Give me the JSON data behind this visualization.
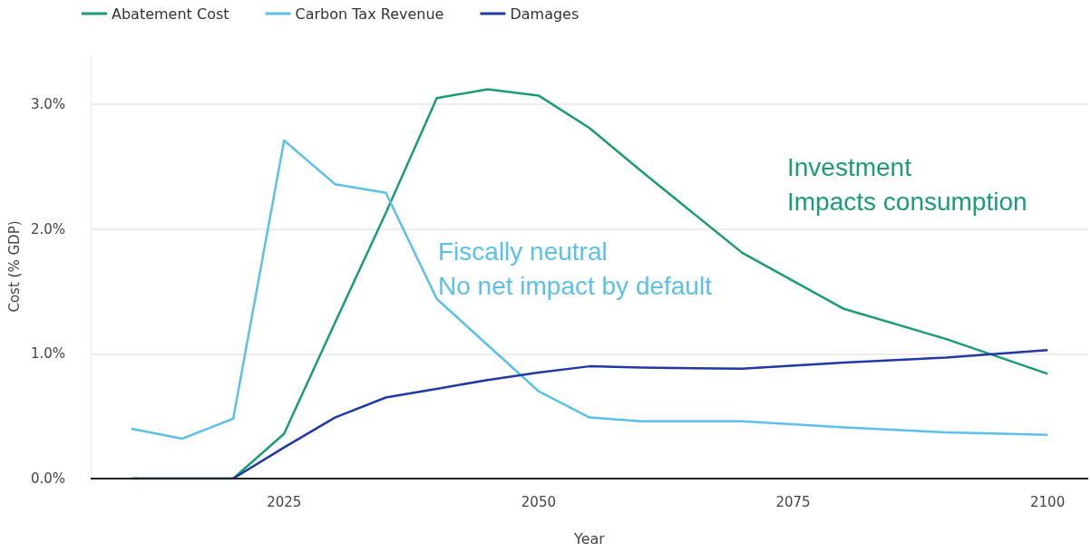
{
  "chart_data": {
    "type": "line",
    "xlabel": "Year",
    "ylabel": "Cost (% GDP)",
    "xlim": [
      2006,
      2104
    ],
    "xticks": [
      2025,
      2050,
      2075,
      2100
    ],
    "ylim": [
      0,
      3.4
    ],
    "yticks": [
      {
        "value": 0,
        "label": "0.0%"
      },
      {
        "value": 1,
        "label": "1.0%"
      },
      {
        "value": 2,
        "label": "2.0%"
      },
      {
        "value": 3,
        "label": "3.0%"
      }
    ],
    "x": [
      2010,
      2015,
      2020,
      2025,
      2030,
      2035,
      2040,
      2045,
      2050,
      2055,
      2060,
      2070,
      2080,
      2090,
      2100
    ],
    "series": [
      {
        "name": "Abatement Cost",
        "color": "#1a9c77",
        "values": [
          0,
          0,
          0,
          0.36,
          1.25,
          2.13,
          3.05,
          3.12,
          3.07,
          2.81,
          2.47,
          1.81,
          1.36,
          1.12,
          0.84
        ]
      },
      {
        "name": "Carbon Tax Revenue",
        "color": "#5bc0eb",
        "values": [
          0.4,
          0.32,
          0.48,
          2.71,
          2.36,
          2.29,
          1.44,
          1.07,
          0.7,
          0.49,
          0.46,
          0.46,
          0.41,
          0.37,
          0.35
        ]
      },
      {
        "name": "Damages",
        "color": "#1f3aa6",
        "values": [
          0,
          0,
          0,
          0.25,
          0.49,
          0.65,
          0.72,
          0.79,
          0.85,
          0.9,
          0.89,
          0.88,
          0.93,
          0.97,
          1.03
        ]
      }
    ],
    "annotations": [
      "Investment\nImpacts consumption",
      "Fiscally neutral\nNo net impact by default"
    ],
    "grid": "y",
    "legend": "top left",
    "marker": "none",
    "line_style": "solid"
  }
}
